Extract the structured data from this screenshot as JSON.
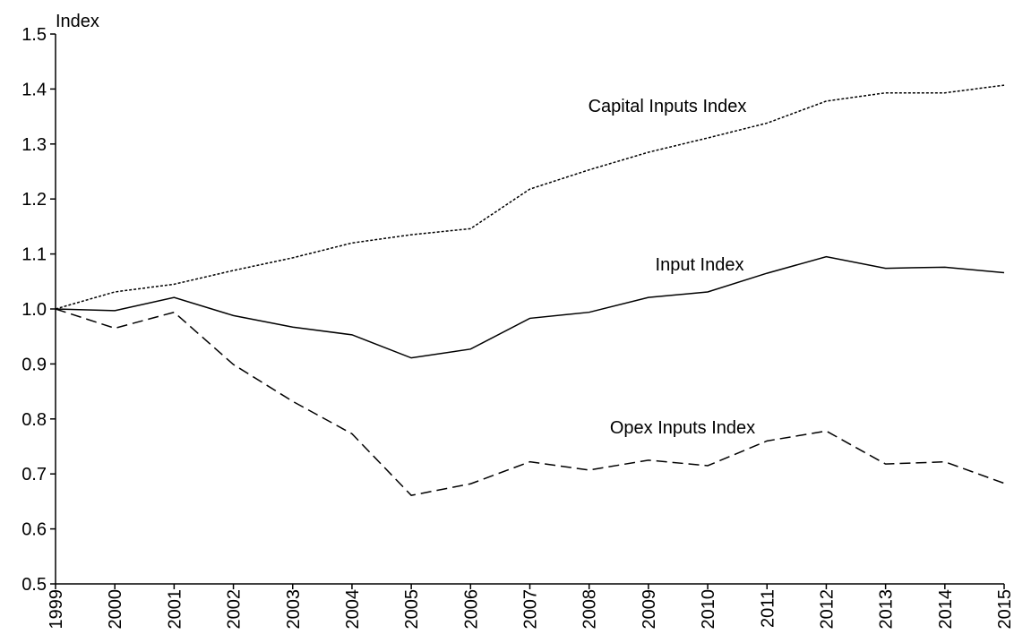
{
  "chart_data": {
    "type": "line",
    "y_axis_label": "Index",
    "x": [
      1999,
      2000,
      2001,
      2002,
      2003,
      2004,
      2005,
      2006,
      2007,
      2008,
      2009,
      2010,
      2011,
      2012,
      2013,
      2014,
      2015
    ],
    "xlim": [
      1999,
      2015
    ],
    "xticks": [
      1999,
      2000,
      2001,
      2002,
      2003,
      2004,
      2005,
      2006,
      2007,
      2008,
      2009,
      2010,
      2011,
      2012,
      2013,
      2014,
      2015
    ],
    "ylim": [
      0.5,
      1.5
    ],
    "yticks": [
      0.5,
      0.6,
      0.7,
      0.8,
      0.9,
      {
        "value": 1,
        "label": "1.0"
      },
      1.1,
      1.2,
      1.3,
      1.4,
      1.5
    ],
    "grid": false,
    "series": [
      {
        "name": "Capital Inputs Index",
        "color": "#000000",
        "line_style": "dotted",
        "values": [
          1.0,
          1.031,
          1.045,
          1.07,
          1.093,
          1.12,
          1.135,
          1.146,
          1.218,
          1.253,
          1.285,
          1.311,
          1.338,
          1.378,
          1.393,
          1.393,
          1.407
        ]
      },
      {
        "name": "Input Index",
        "color": "#000000",
        "line_style": "solid",
        "values": [
          1.0,
          0.997,
          1.021,
          0.988,
          0.967,
          0.953,
          0.911,
          0.927,
          0.983,
          0.994,
          1.021,
          1.031,
          1.065,
          1.095,
          1.074,
          1.076,
          1.066
        ]
      },
      {
        "name": "Opex Inputs Index",
        "color": "#000000",
        "line_style": "dashed",
        "values": [
          1.0,
          0.965,
          0.994,
          0.899,
          0.832,
          0.773,
          0.661,
          0.682,
          0.722,
          0.707,
          0.725,
          0.715,
          0.76,
          0.778,
          0.718,
          0.722,
          0.683
        ]
      }
    ]
  }
}
